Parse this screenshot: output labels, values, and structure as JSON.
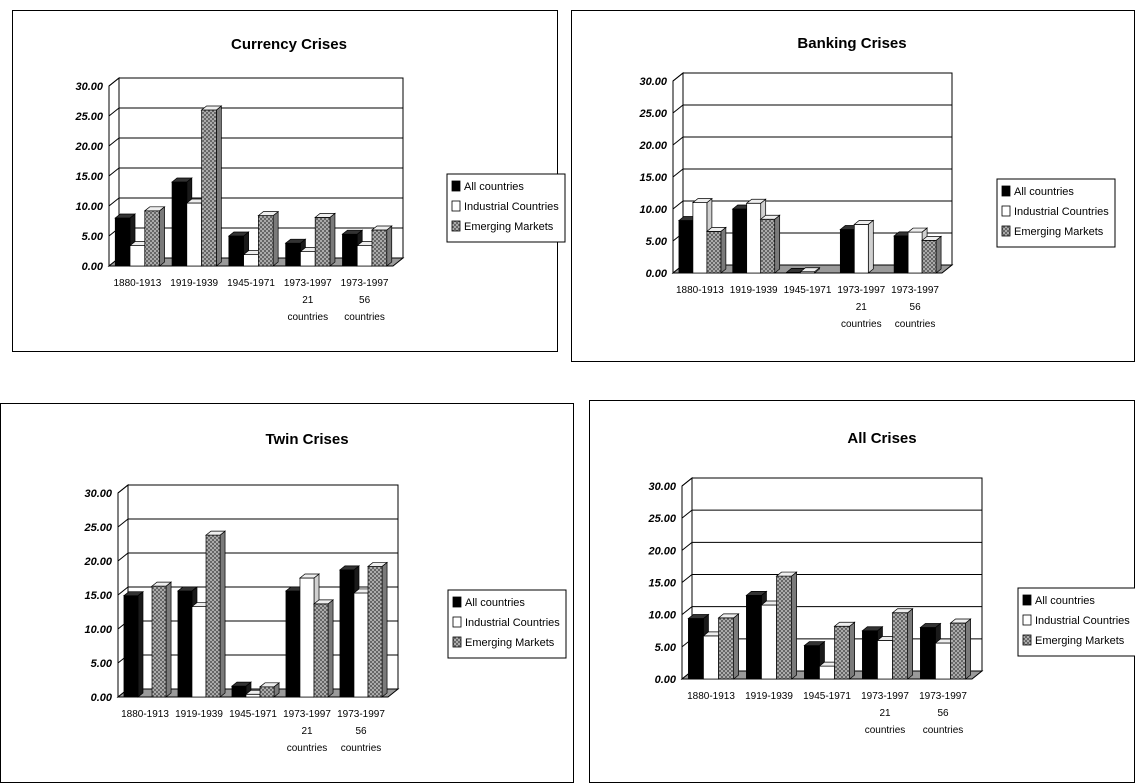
{
  "chart_data": [
    {
      "type": "bar",
      "title": "Currency Crises",
      "categories": [
        "1880-1913",
        "1919-1939",
        "1945-1971",
        "1973-1997 21 countries",
        "1973-1997 56 countries"
      ],
      "category_lines": [
        [
          "1880-1913"
        ],
        [
          "1919-1939"
        ],
        [
          "1945-1971"
        ],
        [
          "1973-1997",
          "21",
          "countries"
        ],
        [
          "1973-1997",
          "56",
          "countries"
        ]
      ],
      "y_ticks": [
        "0.00",
        "5.00",
        "10.00",
        "15.00",
        "20.00",
        "25.00",
        "30.00"
      ],
      "ylim": [
        0,
        30
      ],
      "series": [
        {
          "name": "All countries",
          "values": [
            8.0,
            14.0,
            5.0,
            3.8,
            5.3
          ]
        },
        {
          "name": "Industrial Countries",
          "values": [
            3.4,
            10.5,
            1.9,
            2.4,
            3.4
          ]
        },
        {
          "name": "Emerging Markets",
          "values": [
            9.2,
            26.0,
            8.4,
            8.1,
            6.0
          ]
        }
      ],
      "legend_position": "right",
      "grid": true
    },
    {
      "type": "bar",
      "title": "Banking Crises",
      "categories": [
        "1880-1913",
        "1919-1939",
        "1945-1971",
        "1973-1997 21 countries",
        "1973-1997 56 countries"
      ],
      "category_lines": [
        [
          "1880-1913"
        ],
        [
          "1919-1939"
        ],
        [
          "1945-1971"
        ],
        [
          "1973-1997",
          "21",
          "countries"
        ],
        [
          "1973-1997",
          "56",
          "countries"
        ]
      ],
      "y_ticks": [
        "0.00",
        "5.00",
        "10.00",
        "15.00",
        "20.00",
        "25.00",
        "30.00"
      ],
      "ylim": [
        0,
        30
      ],
      "series": [
        {
          "name": "All countries",
          "values": [
            8.2,
            10.0,
            0.1,
            6.8,
            5.8
          ]
        },
        {
          "name": "Industrial Countries",
          "values": [
            11.0,
            10.9,
            0.2,
            7.6,
            6.4
          ]
        },
        {
          "name": "Emerging Markets",
          "values": [
            6.5,
            8.4,
            0.0,
            0.0,
            5.1
          ]
        }
      ],
      "legend_position": "right",
      "grid": true
    },
    {
      "type": "bar",
      "title": "Twin Crises",
      "categories": [
        "1880-1913",
        "1919-1939",
        "1945-1971",
        "1973-1997 21 countries",
        "1973-1997 56 countries"
      ],
      "category_lines": [
        [
          "1880-1913"
        ],
        [
          "1919-1939"
        ],
        [
          "1945-1971"
        ],
        [
          "1973-1997",
          "21",
          "countries"
        ],
        [
          "1973-1997",
          "56",
          "countries"
        ]
      ],
      "y_ticks": [
        "0.00",
        "5.00",
        "10.00",
        "15.00",
        "20.00",
        "25.00",
        "30.00"
      ],
      "ylim": [
        0,
        30
      ],
      "series": [
        {
          "name": "All countries",
          "values": [
            14.9,
            15.6,
            1.6,
            15.6,
            18.7
          ]
        },
        {
          "name": "Industrial Countries",
          "values": [
            0.0,
            13.3,
            0.4,
            17.5,
            15.3
          ]
        },
        {
          "name": "Emerging Markets",
          "values": [
            16.3,
            23.8,
            1.5,
            13.7,
            19.2
          ]
        }
      ],
      "legend_position": "right",
      "grid": true
    },
    {
      "type": "bar",
      "title": "All Crises",
      "categories": [
        "1880-1913",
        "1919-1939",
        "1945-1971",
        "1973-1997 21 countries",
        "1973-1997 56 countries"
      ],
      "category_lines": [
        [
          "1880-1913"
        ],
        [
          "1919-1939"
        ],
        [
          "1945-1971"
        ],
        [
          "1973-1997",
          "21",
          "countries"
        ],
        [
          "1973-1997",
          "56",
          "countries"
        ]
      ],
      "y_ticks": [
        "0.00",
        "5.00",
        "10.00",
        "15.00",
        "20.00",
        "25.00",
        "30.00"
      ],
      "ylim": [
        0,
        30
      ],
      "series": [
        {
          "name": "All countries",
          "values": [
            9.4,
            13.0,
            5.2,
            7.5,
            8.0
          ]
        },
        {
          "name": "Industrial Countries",
          "values": [
            6.7,
            11.5,
            2.0,
            6.0,
            5.6
          ]
        },
        {
          "name": "Emerging Markets",
          "values": [
            9.5,
            16.0,
            8.2,
            10.3,
            8.7
          ]
        }
      ],
      "legend_position": "right",
      "grid": true
    }
  ],
  "colors": {
    "all_countries": "#000000",
    "industrial_countries": "#ffffff",
    "emerging_markets": "#a8a8a8",
    "grid": "#000000",
    "background": "#ffffff"
  }
}
